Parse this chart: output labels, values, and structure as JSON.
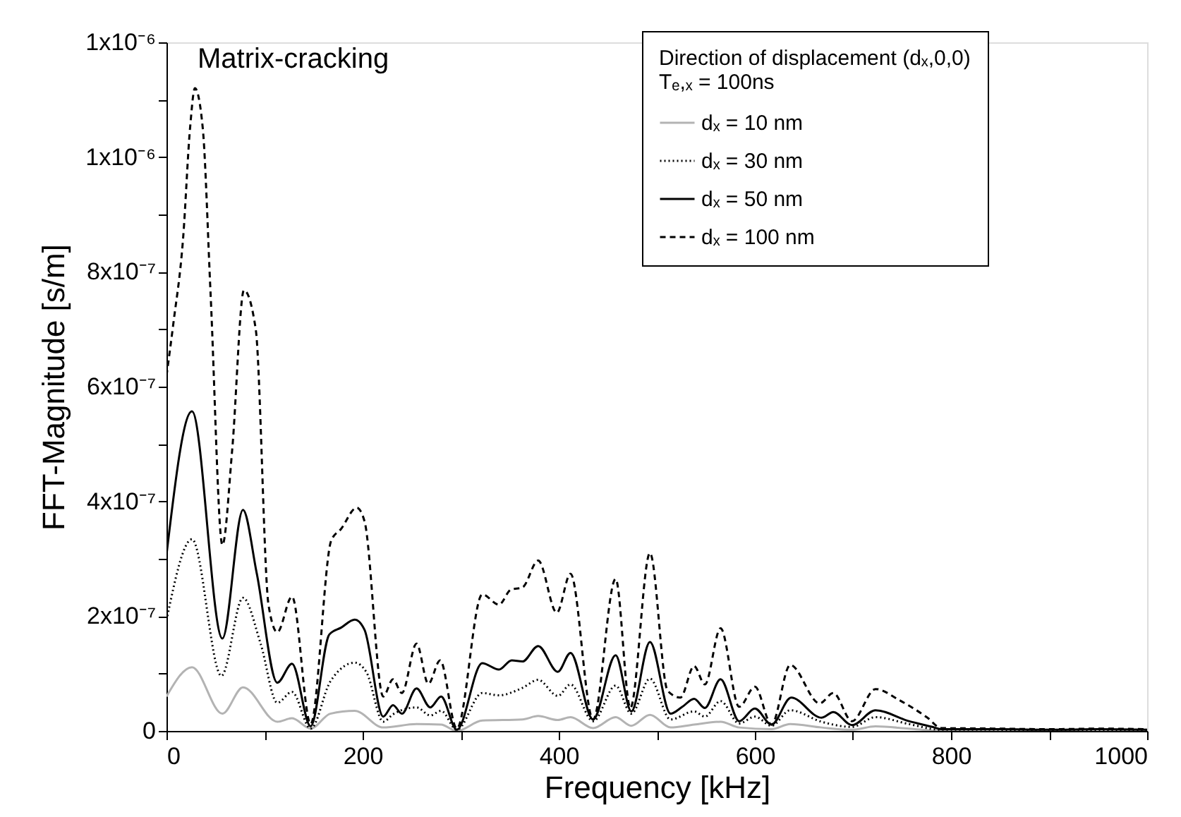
{
  "chart_data": {
    "type": "line",
    "xlabel": "Frequency [kHz]",
    "ylabel": "FFT-Magnitude [s/m]",
    "legend_title": "Direction of displacement (dₓ,0,0)\nTₑ,ₓ = 100ns",
    "annotations": [
      "Matrix-cracking"
    ],
    "xlim": [
      0,
      1000
    ],
    "xticks": [
      0,
      {
        "value": 100,
        "label": null
      },
      200,
      {
        "value": 300,
        "label": null
      },
      400,
      {
        "value": 500,
        "label": null
      },
      600,
      {
        "value": 700,
        "label": null
      },
      800,
      {
        "value": 900,
        "label": null
      },
      1000
    ],
    "ylim": [
      0,
      1.2e-06
    ],
    "yticks": [
      {
        "value": 0,
        "label": "0"
      },
      {
        "value": 1e-07,
        "label": null
      },
      {
        "value": 2e-07,
        "label": "2x10⁻⁷"
      },
      {
        "value": 3e-07,
        "label": null
      },
      {
        "value": 4e-07,
        "label": "4x10⁻⁷"
      },
      {
        "value": 5e-07,
        "label": null
      },
      {
        "value": 6e-07,
        "label": "6x10⁻⁷"
      },
      {
        "value": 7e-07,
        "label": null
      },
      {
        "value": 8e-07,
        "label": "8x10⁻⁷"
      },
      {
        "value": 9e-07,
        "label": null
      },
      {
        "value": 1e-06,
        "label": "1x10⁻⁶"
      },
      {
        "value": 1.1e-06,
        "label": null
      },
      {
        "value": 1.2e-06,
        "label": "1x10⁻⁶"
      }
    ],
    "grid": false,
    "legend": "top right",
    "marker": "none",
    "series": [
      {
        "name": "dₓ = 10 nm",
        "color": "#b3b3b3",
        "line_style": "solid",
        "x": [
          0,
          26,
          57,
          78,
          113,
          128,
          147,
          167,
          192,
          221,
          255,
          280,
          296,
          322,
          363,
          379,
          399,
          412,
          435,
          458,
          474,
          493,
          514,
          538,
          565,
          584,
          617,
          636,
          668,
          699,
          723,
          757,
          790,
          850,
          900,
          950,
          1000
        ],
        "values": [
          6e-08,
          1.11e-07,
          3e-08,
          7.6e-08,
          1.6e-08,
          2.2e-08,
          4e-09,
          3e-08,
          3.5e-08,
          6e-09,
          1.2e-08,
          1.1e-08,
          0,
          1.8e-08,
          2e-08,
          2.6e-08,
          1.9e-08,
          2.4e-08,
          5e-09,
          2.4e-08,
          9e-09,
          2.8e-08,
          6e-09,
          1.1e-08,
          1.6e-08,
          6e-09,
          3e-09,
          1.2e-08,
          6e-09,
          2e-09,
          8e-09,
          4e-09,
          0,
          2e-09,
          1e-09,
          2e-09,
          1e-09
        ]
      },
      {
        "name": "dₓ = 30 nm",
        "color": "#000000",
        "line_style": "dotted",
        "x": [
          0,
          26,
          56,
          78,
          96,
          113,
          128,
          147,
          167,
          192,
          204,
          221,
          231,
          255,
          269,
          280,
          296,
          322,
          339,
          363,
          379,
          399,
          412,
          435,
          458,
          474,
          493,
          514,
          538,
          549,
          565,
          584,
          600,
          617,
          636,
          668,
          699,
          723,
          757,
          790,
          850,
          900,
          950,
          1000
        ],
        "values": [
          1.93e-07,
          3.34e-07,
          9.6e-08,
          2.32e-07,
          1.52e-07,
          4.9e-08,
          6.8e-08,
          4e-09,
          8.6e-08,
          1.19e-07,
          1.02e-07,
          1.6e-08,
          2.9e-08,
          4.1e-08,
          2.7e-08,
          3.5e-08,
          2e-09,
          6.6e-08,
          6.2e-08,
          7.5e-08,
          8.9e-08,
          6.1e-08,
          8.1e-08,
          1.7e-08,
          7.9e-08,
          3e-08,
          9.1e-08,
          2e-08,
          3.4e-08,
          2.5e-08,
          5.2e-08,
          1.3e-08,
          2.5e-08,
          9e-09,
          3.6e-08,
          1.6e-08,
          7e-09,
          2.4e-08,
          1.2e-08,
          2e-09,
          2e-09,
          1e-09,
          2e-09,
          1e-09
        ]
      },
      {
        "name": "dₓ = 50 nm",
        "color": "#000000",
        "line_style": "solid",
        "x": [
          0,
          26,
          57,
          78,
          92,
          113,
          128,
          147,
          166,
          178,
          192,
          202,
          221,
          231,
          240,
          255,
          269,
          280,
          296,
          322,
          339,
          352,
          363,
          379,
          399,
          412,
          435,
          458,
          474,
          493,
          514,
          526,
          538,
          549,
          565,
          584,
          600,
          617,
          637,
          668,
          680,
          699,
          723,
          757,
          781,
          790,
          850,
          900,
          950,
          1000
        ],
        "values": [
          3.07e-07,
          5.57e-07,
          1.61e-07,
          3.85e-07,
          2.75e-07,
          8.4e-08,
          1.17e-07,
          8e-09,
          1.68e-07,
          1.8e-07,
          1.94e-07,
          1.76e-07,
          2.5e-08,
          4.5e-08,
          3e-08,
          7.4e-08,
          4.1e-08,
          6e-08,
          2e-09,
          1.18e-07,
          1.07e-07,
          1.23e-07,
          1.21e-07,
          1.48e-07,
          1.03e-07,
          1.36e-07,
          2e-08,
          1.32e-07,
          3.4e-08,
          1.55e-07,
          3e-08,
          4.2e-08,
          5.6e-08,
          4e-08,
          9e-08,
          1.7e-08,
          3.9e-08,
          1.1e-08,
          5.8e-08,
          2.3e-08,
          3.3e-08,
          1e-08,
          3.6e-08,
          1.7e-08,
          7e-09,
          3e-09,
          3e-09,
          2e-09,
          3e-09,
          2e-09
        ]
      },
      {
        "name": "dₓ = 100 nm",
        "color": "#000000",
        "line_style": "dashed",
        "x": [
          0,
          7,
          17,
          24,
          29,
          37,
          45,
          57,
          67,
          79,
          91,
          104,
          113,
          128,
          147,
          168,
          178,
          194,
          202,
          221,
          231,
          240,
          255,
          267,
          279,
          296,
          322,
          339,
          351,
          363,
          379,
          398,
          412,
          435,
          458,
          473,
          493,
          511,
          524,
          538,
          549,
          565,
          584,
          600,
          617,
          636,
          666,
          680,
          699,
          723,
          747,
          776,
          790,
          850,
          900,
          950,
          1000
        ],
        "values": [
          6.19e-07,
          7.1e-07,
          8.6e-07,
          1.05e-06,
          1.12e-06,
          1.05e-06,
          7.6e-07,
          3.24e-07,
          4.9e-07,
          7.68e-07,
          7e-07,
          2.2e-07,
          1.72e-07,
          2.34e-07,
          1.2e-08,
          3.32e-07,
          3.52e-07,
          3.89e-07,
          3.65e-07,
          6e-08,
          9e-08,
          6.6e-08,
          1.52e-07,
          8.2e-08,
          1.23e-07,
          4e-09,
          2.38e-07,
          2.2e-07,
          2.46e-07,
          2.5e-07,
          2.97e-07,
          2.06e-07,
          2.74e-07,
          2e-08,
          2.65e-07,
          4e-08,
          3.1e-07,
          7e-08,
          5.8e-08,
          1.13e-07,
          8.1e-08,
          1.79e-07,
          4.2e-08,
          7.7e-08,
          1.1e-08,
          1.15e-07,
          4.8e-08,
          6.6e-08,
          1.7e-08,
          7.3e-08,
          5.4e-08,
          2.3e-08,
          5e-09,
          4e-09,
          3e-09,
          4e-09,
          3e-09
        ]
      }
    ]
  }
}
